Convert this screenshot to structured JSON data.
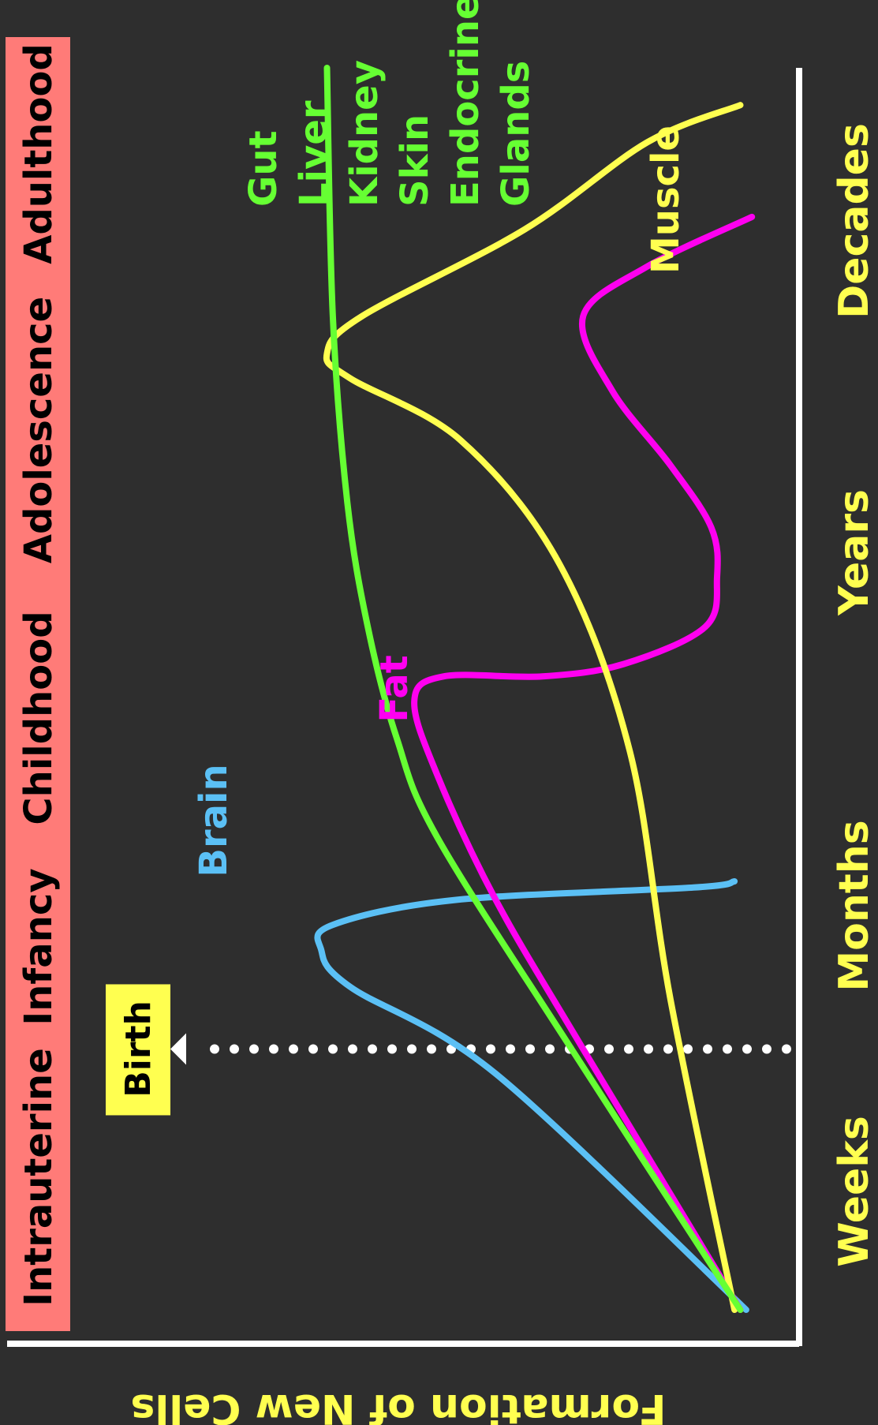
{
  "chart_data": {
    "type": "line",
    "orientation": "rotated-90-clockwise",
    "title": "",
    "ylabel": "Formation of New Cells",
    "xlabel": "",
    "stages": [
      "Intrauterine",
      "Infancy",
      "Childhood",
      "Adolescence",
      "Adulthood"
    ],
    "time_ticks": [
      "Weeks",
      "Months",
      "Years",
      "Decades"
    ],
    "marker": {
      "label": "Birth",
      "at_time": 0.21
    },
    "organ_labels": {
      "brain": "Brain",
      "fat": "Fat",
      "muscle": "Muscle",
      "gut_group": [
        "Gut",
        "Liver",
        "Kidney",
        "Skin",
        "Endocrine",
        "Glands"
      ]
    },
    "time_range": [
      0,
      1
    ],
    "rate_range": [
      0,
      1
    ],
    "series": [
      {
        "name": "Brain",
        "color": "#5bc0f5",
        "points": [
          [
            0.0,
            0.03
          ],
          [
            0.19,
            0.46
          ],
          [
            0.26,
            0.71
          ],
          [
            0.29,
            0.76
          ],
          [
            0.31,
            0.74
          ],
          [
            0.33,
            0.53
          ],
          [
            0.34,
            0.12
          ],
          [
            0.345,
            0.05
          ]
        ]
      },
      {
        "name": "Fat",
        "color": "#ff00f0",
        "points": [
          [
            0.0,
            0.04
          ],
          [
            0.21,
            0.31
          ],
          [
            0.33,
            0.46
          ],
          [
            0.43,
            0.56
          ],
          [
            0.49,
            0.6
          ],
          [
            0.51,
            0.55
          ],
          [
            0.51,
            0.38
          ],
          [
            0.52,
            0.24
          ],
          [
            0.55,
            0.1
          ],
          [
            0.59,
            0.08
          ],
          [
            0.63,
            0.09
          ],
          [
            0.68,
            0.16
          ],
          [
            0.74,
            0.26
          ],
          [
            0.8,
            0.31
          ],
          [
            0.84,
            0.2
          ],
          [
            0.88,
            0.02
          ]
        ]
      },
      {
        "name": "Muscle",
        "color": "#ffff50",
        "points": [
          [
            0.0,
            0.05
          ],
          [
            0.25,
            0.16
          ],
          [
            0.45,
            0.23
          ],
          [
            0.6,
            0.35
          ],
          [
            0.7,
            0.52
          ],
          [
            0.75,
            0.71
          ],
          [
            0.77,
            0.75
          ],
          [
            0.8,
            0.69
          ],
          [
            0.87,
            0.41
          ],
          [
            0.94,
            0.2
          ],
          [
            0.97,
            0.04
          ]
        ]
      },
      {
        "name": "Gut, Liver, Kidney, Skin, Endocrine, Glands",
        "color": "#66ff33",
        "points": [
          [
            0.0,
            0.04
          ],
          [
            0.21,
            0.33
          ],
          [
            0.38,
            0.56
          ],
          [
            0.46,
            0.63
          ],
          [
            0.55,
            0.68
          ],
          [
            0.65,
            0.715
          ],
          [
            0.8,
            0.74
          ],
          [
            1.0,
            0.75
          ]
        ]
      }
    ],
    "grid": false,
    "legend": "none"
  }
}
